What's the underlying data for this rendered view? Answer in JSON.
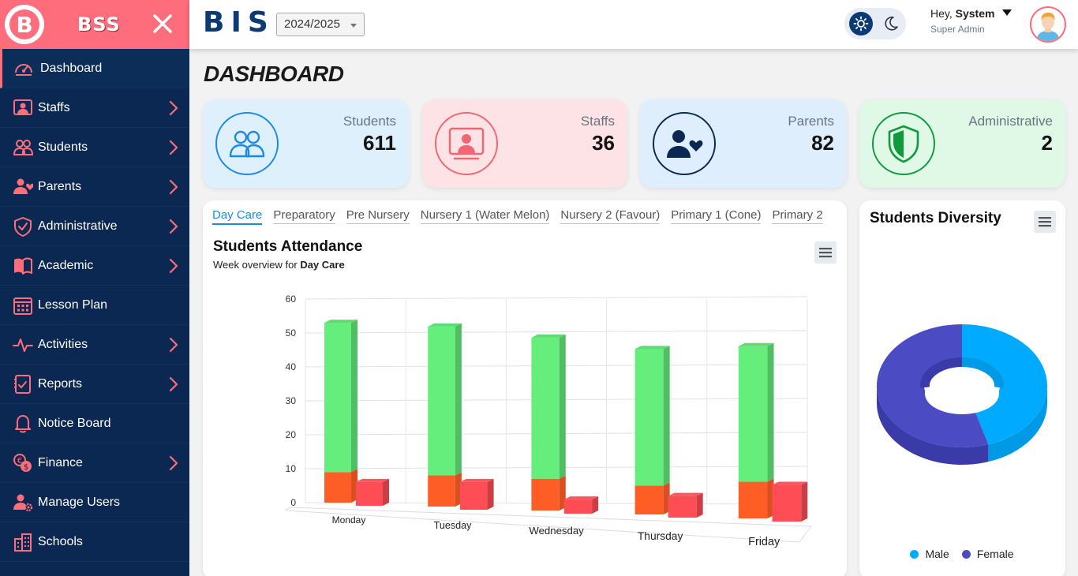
{
  "brand": {
    "logo_letter": "B",
    "name": "BSS"
  },
  "sidebar": {
    "items": [
      {
        "label": "Dashboard",
        "icon": "dashboard-gauge-icon",
        "has_children": false,
        "active": true
      },
      {
        "label": "Staffs",
        "icon": "staff-icon",
        "has_children": true
      },
      {
        "label": "Students",
        "icon": "students-icon",
        "has_children": true
      },
      {
        "label": "Parents",
        "icon": "parents-icon",
        "has_children": true
      },
      {
        "label": "Administrative",
        "icon": "shield-icon",
        "has_children": true
      },
      {
        "label": "Academic",
        "icon": "book-icon",
        "has_children": true
      },
      {
        "label": "Lesson Plan",
        "icon": "calendar-icon",
        "has_children": false
      },
      {
        "label": "Activities",
        "icon": "pulse-icon",
        "has_children": true
      },
      {
        "label": "Reports",
        "icon": "report-icon",
        "has_children": true
      },
      {
        "label": "Notice Board",
        "icon": "bell-icon",
        "has_children": false
      },
      {
        "label": "Finance",
        "icon": "coins-icon",
        "has_children": true
      },
      {
        "label": "Manage Users",
        "icon": "user-gear-icon",
        "has_children": false
      },
      {
        "label": "Schools",
        "icon": "building-icon",
        "has_children": false
      }
    ]
  },
  "topbar": {
    "school_code": "BIS",
    "session": "2024/2025",
    "greeting": "Hey,",
    "user_name": "System",
    "user_role": "Super Admin"
  },
  "main": {
    "page_title": "DASHBOARD",
    "stats": [
      {
        "label": "Students",
        "value": "611",
        "icon": "students-icon",
        "bg": "#dff0fd",
        "accent": "#1e88e5"
      },
      {
        "label": "Staffs",
        "value": "36",
        "icon": "staff-screen-icon",
        "bg": "#fde3e5",
        "accent": "#f06772"
      },
      {
        "label": "Parents",
        "value": "82",
        "icon": "parent-heart-icon",
        "bg": "#dfeefc",
        "accent": "#0b2852"
      },
      {
        "label": "Administrative",
        "value": "2",
        "icon": "shield-icon",
        "bg": "#dff9e6",
        "accent": "#119a3c"
      }
    ],
    "attendance": {
      "tabs": [
        "Day Care",
        "Preparatory",
        "Pre Nursery",
        "Nursery 1 (Water Melon)",
        "Nursery 2 (Favour)",
        "Primary 1 (Cone)",
        "Primary 2"
      ],
      "active_tab": 0,
      "title": "Students Attendance",
      "subtitle_prefix": "Week overview for",
      "subtitle_class": "Day Care"
    },
    "diversity": {
      "title": "Students Diversity"
    }
  },
  "chart_data": [
    {
      "type": "bar",
      "title": "Students Attendance",
      "subtitle": "Week overview for Day Care",
      "categories": [
        "Monday",
        "Tuesday",
        "Wednesday",
        "Thursday",
        "Friday"
      ],
      "stacked": true,
      "three_d": true,
      "series": [
        {
          "values": [
            9,
            9,
            9,
            8,
            10
          ],
          "color": "#ff5d26"
        },
        {
          "values": [
            44,
            43,
            40,
            38,
            37
          ],
          "color": "#66ee7c"
        },
        {
          "values": [
            7,
            8,
            4,
            6,
            10
          ],
          "color": "#ff4d55"
        }
      ],
      "yticks": [
        0,
        10,
        20,
        30,
        40,
        50,
        60
      ],
      "ylim": [
        0,
        60
      ],
      "grid": true
    },
    {
      "type": "pie",
      "donut": true,
      "three_d": true,
      "title": "Students Diversity",
      "labels": [
        "Male",
        "Female"
      ],
      "values": [
        45,
        55
      ],
      "colors": [
        "#00aaff",
        "#4b4bc3"
      ],
      "legend": "bottom"
    }
  ]
}
